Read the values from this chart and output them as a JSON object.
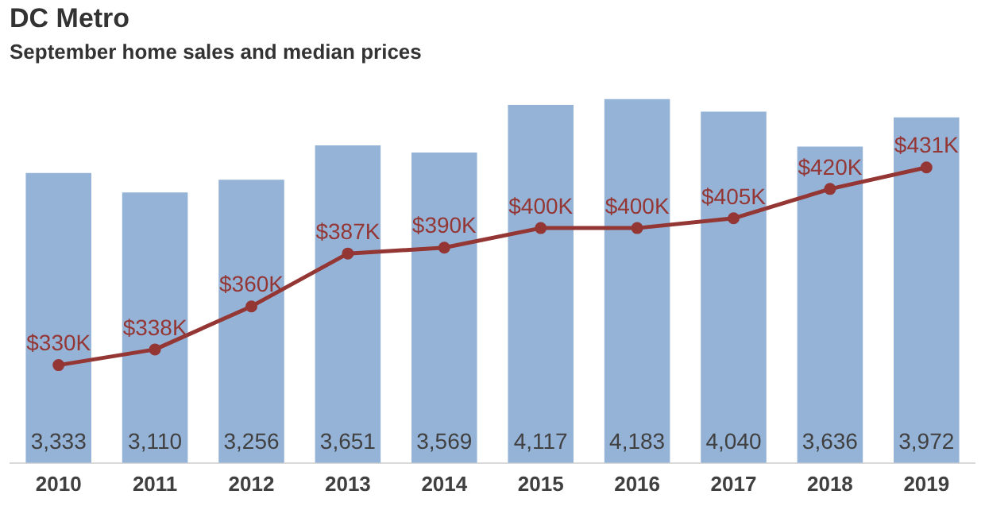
{
  "chart_data": {
    "type": "bar",
    "title": "DC Metro",
    "subtitle": "September home sales and median prices",
    "categories": [
      "2010",
      "2011",
      "2012",
      "2013",
      "2014",
      "2015",
      "2016",
      "2017",
      "2018",
      "2019"
    ],
    "series": [
      {
        "color": "#95b3d7",
        "values": [
          3333,
          3110,
          3256,
          3651,
          3569,
          4117,
          4183,
          4040,
          3636,
          3972
        ],
        "value_labels": [
          "3,333",
          "3,110",
          "3,256",
          "3,651",
          "3,569",
          "4,117",
          "4,183",
          "4,040",
          "3,636",
          "3,972"
        ]
      },
      {
        "type": "line",
        "axis": "y2",
        "color": "#943634",
        "marker": "circle",
        "line_style": "solid",
        "values": [
          330,
          338,
          360,
          387,
          390,
          400,
          400,
          405,
          420,
          431
        ],
        "value_labels": [
          "$330K",
          "$338K",
          "$360K",
          "$387K",
          "$390K",
          "$400K",
          "$400K",
          "$405K",
          "$420K",
          "$431K"
        ]
      }
    ],
    "tick_labels": "x",
    "grid": false,
    "legend": false
  }
}
